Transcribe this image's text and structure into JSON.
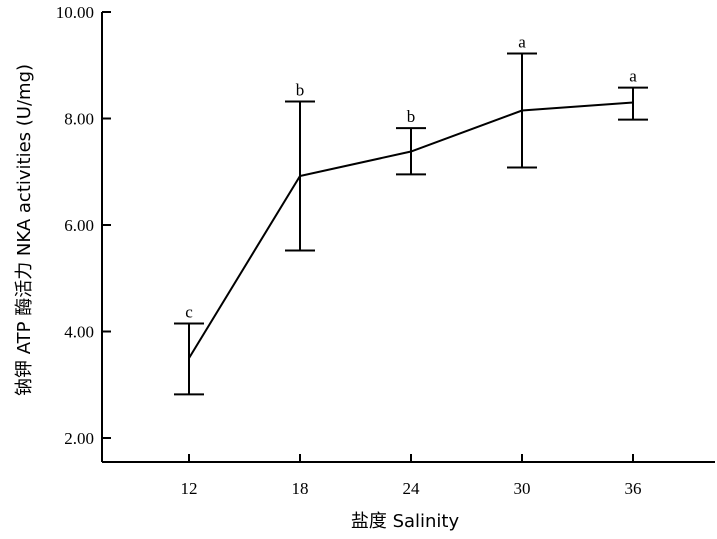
{
  "chart_data": {
    "type": "line",
    "title": "",
    "xlabel": "盐度  Salinity",
    "ylabel": "钠钾 ATP 酶活力  NKA activities (U/mg)",
    "ylim": [
      2.0,
      10.0
    ],
    "yticks": [
      "2.00",
      "4.00",
      "6.00",
      "8.00",
      "10.00"
    ],
    "categories": [
      "12",
      "18",
      "24",
      "30",
      "36"
    ],
    "series": [
      {
        "values": [
          3.5,
          6.92,
          7.38,
          8.15,
          8.3
        ],
        "error_low": [
          2.82,
          5.52,
          6.95,
          7.08,
          7.98
        ],
        "error_high": [
          4.15,
          8.32,
          7.82,
          9.22,
          8.58
        ],
        "significance": [
          "c",
          "b",
          "b",
          "a",
          "a"
        ]
      }
    ]
  }
}
